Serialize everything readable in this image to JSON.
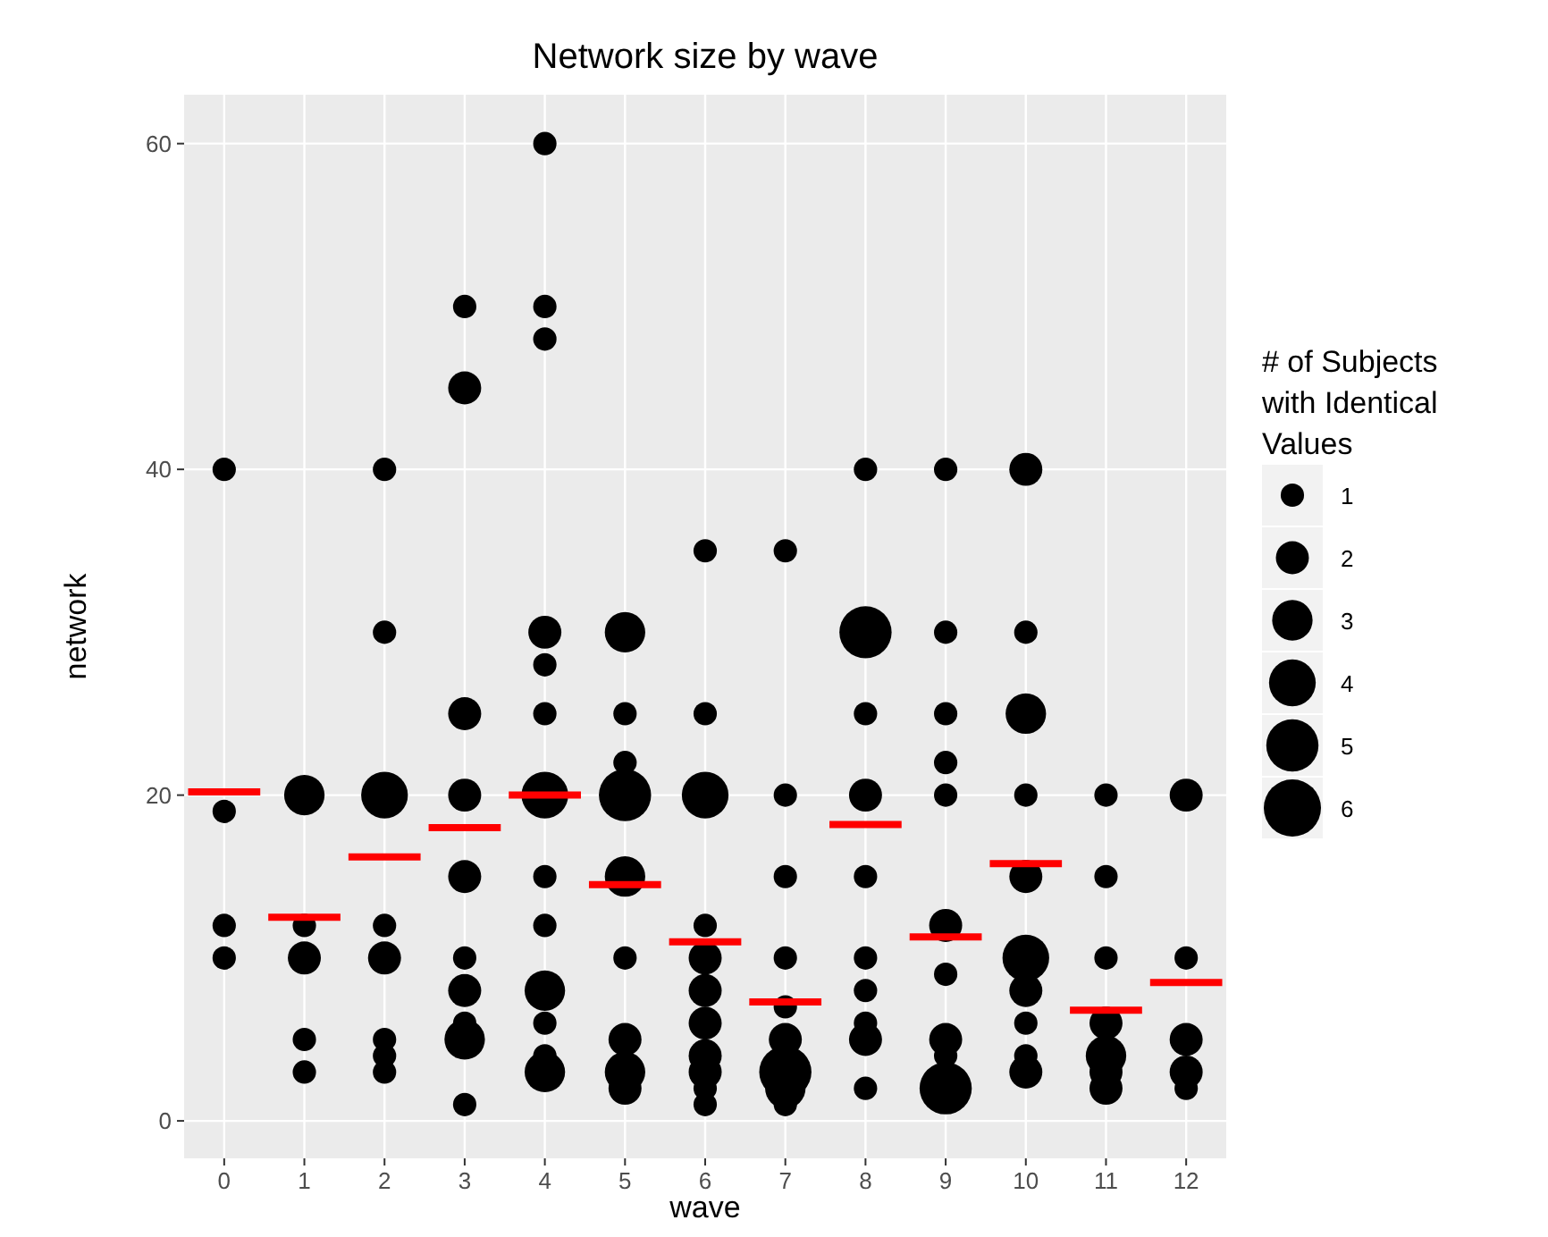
{
  "chart_data": {
    "type": "bubble",
    "title": "Network size by wave",
    "xlabel": "wave",
    "ylabel": "network",
    "legend_title": "# of Subjects\nwith Identical\nValues",
    "grid": true,
    "xlim": [
      -0.5,
      12.5
    ],
    "xticks": [
      0,
      1,
      2,
      3,
      4,
      5,
      6,
      7,
      8,
      9,
      10,
      11,
      12
    ],
    "ylim": [
      -2.3,
      63
    ],
    "yticks": [
      0,
      20,
      40,
      60
    ],
    "size_legend": [
      1,
      2,
      3,
      4,
      5,
      6
    ],
    "series": [
      {
        "color": "#000000",
        "x": [
          0,
          0,
          0,
          0,
          1,
          1,
          1,
          1,
          1,
          2,
          2,
          2,
          2,
          2,
          2,
          2,
          2,
          3,
          3,
          3,
          3,
          3,
          3,
          3,
          3,
          3,
          3,
          4,
          4,
          4,
          4,
          4,
          4,
          4,
          4,
          4,
          4,
          4,
          4,
          4,
          5,
          5,
          5,
          5,
          5,
          5,
          5,
          5,
          5,
          6,
          6,
          6,
          6,
          6,
          6,
          6,
          6,
          6,
          6,
          6,
          7,
          7,
          7,
          7,
          7,
          7,
          7,
          7,
          7,
          8,
          8,
          8,
          8,
          8,
          8,
          8,
          8,
          8,
          8,
          9,
          9,
          9,
          9,
          9,
          9,
          9,
          9,
          9,
          9,
          10,
          10,
          10,
          10,
          10,
          10,
          10,
          10,
          10,
          10,
          11,
          11,
          11,
          11,
          11,
          11,
          11,
          12,
          12,
          12,
          12,
          12
        ],
        "values": [
          40,
          19,
          12,
          10,
          20,
          12,
          10,
          5,
          3,
          40,
          30,
          20,
          12,
          10,
          5,
          4,
          3,
          50,
          45,
          25,
          20,
          15,
          10,
          8,
          6,
          5,
          1,
          60,
          50,
          48,
          30,
          28,
          25,
          20,
          15,
          12,
          8,
          6,
          4,
          3,
          30,
          25,
          22,
          20,
          15,
          10,
          5,
          3,
          2,
          35,
          25,
          20,
          12,
          10,
          8,
          6,
          4,
          3,
          2,
          1,
          35,
          20,
          15,
          10,
          7,
          5,
          3,
          2,
          1,
          40,
          30,
          25,
          20,
          15,
          10,
          8,
          6,
          5,
          2,
          40,
          30,
          25,
          22,
          20,
          12,
          9,
          5,
          4,
          2,
          40,
          30,
          25,
          20,
          15,
          10,
          8,
          6,
          4,
          3,
          20,
          15,
          10,
          6,
          4,
          3,
          2,
          20,
          10,
          5,
          3,
          2
        ],
        "sizes": [
          1,
          1,
          1,
          1,
          3,
          1,
          2,
          1,
          1,
          1,
          1,
          4,
          1,
          2,
          1,
          1,
          1,
          1,
          2,
          2,
          2,
          2,
          1,
          2,
          1,
          3,
          1,
          1,
          1,
          1,
          2,
          1,
          1,
          4,
          1,
          1,
          3,
          1,
          1,
          3,
          3,
          1,
          1,
          5,
          3,
          1,
          2,
          3,
          2,
          1,
          1,
          4,
          1,
          2,
          2,
          2,
          2,
          2,
          1,
          1,
          1,
          1,
          1,
          1,
          1,
          2,
          5,
          3,
          1,
          1,
          5,
          1,
          2,
          1,
          1,
          1,
          1,
          2,
          1,
          1,
          1,
          1,
          1,
          1,
          2,
          1,
          2,
          1,
          5,
          2,
          1,
          3,
          1,
          2,
          4,
          2,
          1,
          1,
          2,
          1,
          1,
          1,
          2,
          3,
          2,
          2,
          2,
          1,
          2,
          2,
          1
        ]
      },
      {
        "type": "line",
        "color": "#ff0000",
        "x": [
          -0.45,
          0.45
        ],
        "values": [
          20.2,
          20.2
        ]
      },
      {
        "type": "line",
        "color": "#ff0000",
        "x": [
          0.55,
          1.45
        ],
        "values": [
          12.5,
          12.5
        ]
      },
      {
        "type": "line",
        "color": "#ff0000",
        "x": [
          1.55,
          2.45
        ],
        "values": [
          16.2,
          16.2
        ]
      },
      {
        "type": "line",
        "color": "#ff0000",
        "x": [
          2.55,
          3.45
        ],
        "values": [
          18,
          18
        ]
      },
      {
        "type": "line",
        "color": "#ff0000",
        "x": [
          3.55,
          4.45
        ],
        "values": [
          20,
          20
        ]
      },
      {
        "type": "line",
        "color": "#ff0000",
        "x": [
          4.55,
          5.45
        ],
        "values": [
          14.5,
          14.5
        ]
      },
      {
        "type": "line",
        "color": "#ff0000",
        "x": [
          5.55,
          6.45
        ],
        "values": [
          11,
          11
        ]
      },
      {
        "type": "line",
        "color": "#ff0000",
        "x": [
          6.55,
          7.45
        ],
        "values": [
          7.3,
          7.3
        ]
      },
      {
        "type": "line",
        "color": "#ff0000",
        "x": [
          7.55,
          8.45
        ],
        "values": [
          18.2,
          18.2
        ]
      },
      {
        "type": "line",
        "color": "#ff0000",
        "x": [
          8.55,
          9.45
        ],
        "values": [
          11.3,
          11.3
        ]
      },
      {
        "type": "line",
        "color": "#ff0000",
        "x": [
          9.55,
          10.45
        ],
        "values": [
          15.8,
          15.8
        ]
      },
      {
        "type": "line",
        "color": "#ff0000",
        "x": [
          10.55,
          11.45
        ],
        "values": [
          6.8,
          6.8
        ]
      },
      {
        "type": "line",
        "color": "#ff0000",
        "x": [
          11.55,
          12.45
        ],
        "values": [
          8.5,
          8.5
        ]
      }
    ]
  }
}
